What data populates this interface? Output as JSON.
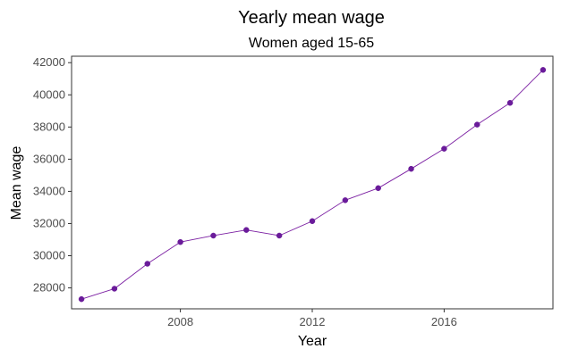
{
  "chart_data": {
    "type": "line",
    "title": "Yearly mean wage",
    "subtitle": "Women aged 15-65",
    "xlabel": "Year",
    "ylabel": "Mean wage",
    "x": [
      2005,
      2006,
      2007,
      2008,
      2009,
      2010,
      2011,
      2012,
      2013,
      2014,
      2015,
      2016,
      2017,
      2018,
      2019
    ],
    "series": [
      {
        "name": "Mean wage",
        "values": [
          27300,
          27950,
          29500,
          30850,
          31250,
          31600,
          31250,
          32150,
          33450,
          34200,
          35400,
          36650,
          38150,
          39500,
          41550
        ]
      }
    ],
    "xlim": [
      2004.7,
      2019.3
    ],
    "ylim": [
      26700,
      42400
    ],
    "xticks": [
      2008,
      2012,
      2016
    ],
    "yticks": [
      28000,
      30000,
      32000,
      34000,
      36000,
      38000,
      40000,
      42000
    ],
    "grid": false,
    "legend": "none",
    "colors": {
      "line": "#7b1fa2",
      "marker": "#6a1b9a",
      "frame": "#333333",
      "tick_text": "#4d4d4d"
    }
  }
}
